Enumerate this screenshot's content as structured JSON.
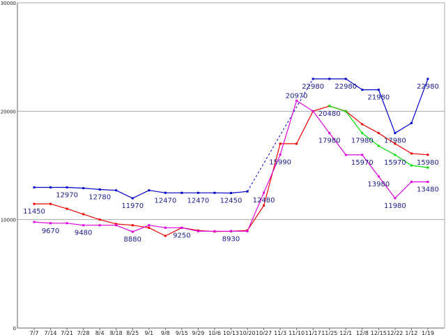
{
  "chart_data": {
    "type": "line",
    "title": "",
    "xlabel": "",
    "ylabel": "",
    "ylim": [
      0,
      30000
    ],
    "yticks": [
      0,
      10000,
      20000,
      30000
    ],
    "grid": "horizontal",
    "categories": [
      "7/7",
      "7/14",
      "7/21",
      "7/28",
      "8/4",
      "8/18",
      "8/25",
      "9/1",
      "9/8",
      "9/15",
      "9/29",
      "10/6",
      "10/13",
      "10/20",
      "10/27",
      "11/3",
      "11/10",
      "11/17",
      "11/25",
      "12/1",
      "12/8",
      "12/15",
      "12/22",
      "1/12",
      "1/19"
    ],
    "series": [
      {
        "color": "#0000cc",
        "values": [
          12970,
          12970,
          12970,
          12900,
          12780,
          12700,
          11970,
          12700,
          12470,
          12470,
          12470,
          12470,
          12450,
          12600,
          null,
          null,
          null,
          22980,
          22980,
          22980,
          21980,
          21980,
          17980,
          18900,
          22980
        ],
        "dashed_bridge": [
          13,
          17
        ]
      },
      {
        "color": "#ee0000",
        "values": [
          11450,
          11450,
          11000,
          10500,
          10000,
          9600,
          9480,
          9250,
          8500,
          9250,
          9000,
          8900,
          8930,
          9000,
          11300,
          17000,
          17000,
          20000,
          20480,
          20000,
          18800,
          17980,
          17000,
          16100,
          15980
        ]
      },
      {
        "color": "#dd00dd",
        "values": [
          9780,
          9670,
          9670,
          9480,
          9480,
          9480,
          8880,
          9480,
          9250,
          9250,
          8930,
          8930,
          8930,
          8930,
          12480,
          15990,
          20970,
          20000,
          17980,
          15970,
          15970,
          13980,
          11980,
          13480,
          13480
        ]
      },
      {
        "color": "#00dd00",
        "values": [
          null,
          null,
          null,
          null,
          null,
          null,
          null,
          null,
          null,
          null,
          null,
          null,
          null,
          null,
          null,
          null,
          null,
          null,
          20480,
          19980,
          17980,
          16800,
          15970,
          15000,
          14800
        ]
      }
    ],
    "annotations": [
      {
        "text": "11450",
        "cat": 0,
        "value": 11450,
        "pos": "below"
      },
      {
        "text": "12970",
        "cat": 2,
        "value": 12970,
        "pos": "below"
      },
      {
        "text": "9670",
        "cat": 1,
        "value": 9670,
        "pos": "below"
      },
      {
        "text": "12780",
        "cat": 4,
        "value": 12780,
        "pos": "below"
      },
      {
        "text": "9480",
        "cat": 3,
        "value": 9480,
        "pos": "below"
      },
      {
        "text": "11970",
        "cat": 6,
        "value": 11970,
        "pos": "below"
      },
      {
        "text": "8880",
        "cat": 6,
        "value": 8880,
        "pos": "below"
      },
      {
        "text": "12470",
        "cat": 8,
        "value": 12470,
        "pos": "below"
      },
      {
        "text": "12470",
        "cat": 10,
        "value": 12470,
        "pos": "below"
      },
      {
        "text": "9250",
        "cat": 9,
        "value": 9250,
        "pos": "below"
      },
      {
        "text": "12450",
        "cat": 12,
        "value": 12450,
        "pos": "below"
      },
      {
        "text": "8930",
        "cat": 12,
        "value": 8930,
        "pos": "below"
      },
      {
        "text": "12480",
        "cat": 14,
        "value": 12480,
        "pos": "below"
      },
      {
        "text": "15990",
        "cat": 15,
        "value": 15990,
        "pos": "below"
      },
      {
        "text": "20970",
        "cat": 16,
        "value": 20970,
        "pos": "above"
      },
      {
        "text": "22980",
        "cat": 17,
        "value": 22980,
        "pos": "below"
      },
      {
        "text": "20480",
        "cat": 18,
        "value": 20480,
        "pos": "below"
      },
      {
        "text": "22980",
        "cat": 19,
        "value": 22980,
        "pos": "below"
      },
      {
        "text": "17980",
        "cat": 18,
        "value": 17980,
        "pos": "below"
      },
      {
        "text": "17980",
        "cat": 20,
        "value": 17980,
        "pos": "below"
      },
      {
        "text": "21980",
        "cat": 21,
        "value": 21980,
        "pos": "below"
      },
      {
        "text": "15970",
        "cat": 20,
        "value": 15970,
        "pos": "below"
      },
      {
        "text": "17980",
        "cat": 22,
        "value": 17980,
        "pos": "below"
      },
      {
        "text": "13980",
        "cat": 21,
        "value": 13980,
        "pos": "below"
      },
      {
        "text": "15970",
        "cat": 22,
        "value": 15970,
        "pos": "below"
      },
      {
        "text": "11980",
        "cat": 22,
        "value": 11980,
        "pos": "below"
      },
      {
        "text": "22980",
        "cat": 24,
        "value": 22980,
        "pos": "below"
      },
      {
        "text": "15980",
        "cat": 24,
        "value": 15980,
        "pos": "below"
      },
      {
        "text": "13480",
        "cat": 24,
        "value": 13480,
        "pos": "below"
      }
    ]
  }
}
